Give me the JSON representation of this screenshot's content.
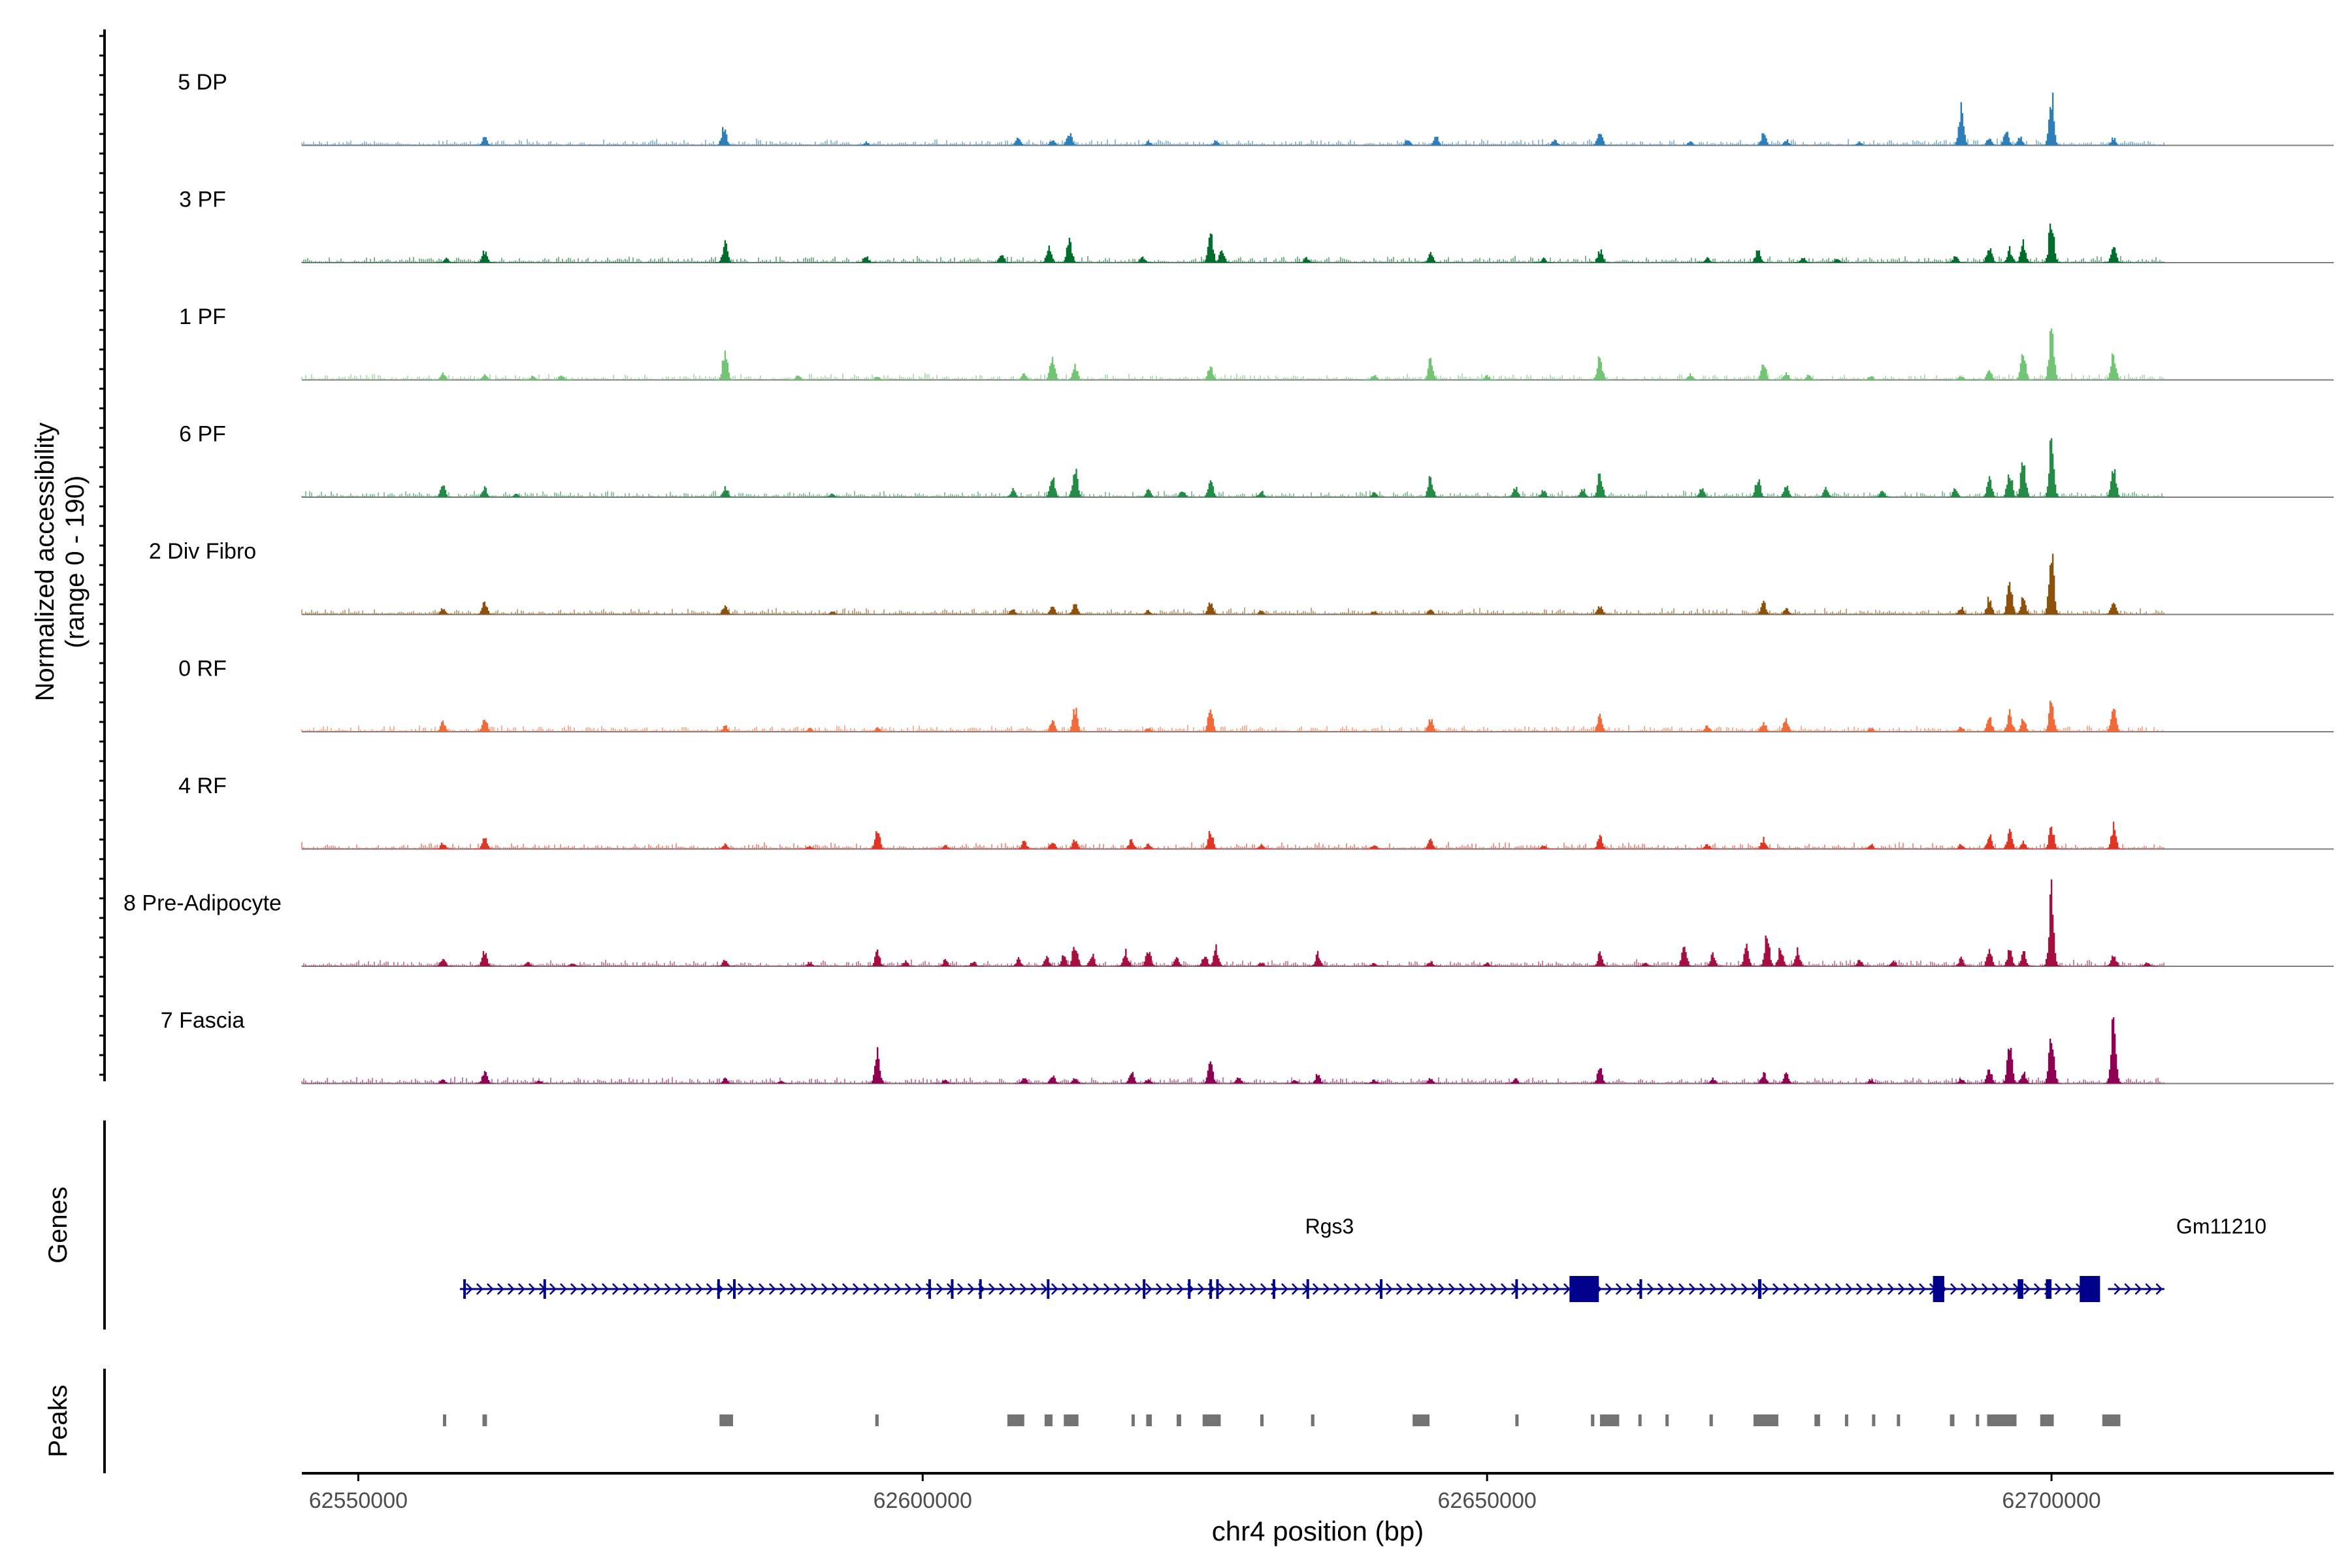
{
  "chart_data": {
    "type": "coverage",
    "ylabel": "Normalized accessibility",
    "ylabel_range": "(range 0 - 190)",
    "ylim": [
      0,
      190
    ],
    "xlabel": "chr4 position (bp)",
    "xlim": [
      62545000,
      62725000
    ],
    "data_start": 62545000,
    "data_end": 62710000,
    "x_ticks": [
      62550000,
      62600000,
      62650000,
      62700000
    ],
    "x_tick_labels": [
      "62550000",
      "62600000",
      "62650000",
      "62700000"
    ],
    "tracks": [
      {
        "name": "5 DP",
        "color": "#2c7fb8",
        "peaks": [
          [
            62561200,
            22
          ],
          [
            62582400,
            45
          ],
          [
            62595000,
            8
          ],
          [
            62608500,
            22
          ],
          [
            62611500,
            15
          ],
          [
            62613000,
            30
          ],
          [
            62620000,
            10
          ],
          [
            62626000,
            12
          ],
          [
            62643000,
            16
          ],
          [
            62645500,
            20
          ],
          [
            62656000,
            14
          ],
          [
            62660000,
            36
          ],
          [
            62668000,
            10
          ],
          [
            62674500,
            30
          ],
          [
            62676500,
            14
          ],
          [
            62683000,
            8
          ],
          [
            62692000,
            85
          ],
          [
            62694500,
            18
          ],
          [
            62696000,
            36
          ],
          [
            62697200,
            22
          ],
          [
            62700000,
            120
          ],
          [
            62705500,
            18
          ]
        ]
      },
      {
        "name": "3 PF",
        "color": "#006d2c",
        "peaks": [
          [
            62557800,
            10
          ],
          [
            62561200,
            28
          ],
          [
            62582500,
            45
          ],
          [
            62595000,
            15
          ],
          [
            62607000,
            18
          ],
          [
            62611200,
            42
          ],
          [
            62613000,
            55
          ],
          [
            62619500,
            14
          ],
          [
            62625500,
            70
          ],
          [
            62626500,
            32
          ],
          [
            62634000,
            12
          ],
          [
            62645000,
            22
          ],
          [
            62655000,
            10
          ],
          [
            62660000,
            30
          ],
          [
            62669500,
            12
          ],
          [
            62674000,
            34
          ],
          [
            62678000,
            14
          ],
          [
            62681000,
            10
          ],
          [
            62691500,
            15
          ],
          [
            62694500,
            42
          ],
          [
            62696300,
            32
          ],
          [
            62697500,
            50
          ],
          [
            62700000,
            110
          ],
          [
            62705500,
            40
          ]
        ]
      },
      {
        "name": "1 PF",
        "color": "#74c476",
        "peaks": [
          [
            62557500,
            18
          ],
          [
            62561200,
            14
          ],
          [
            62565500,
            10
          ],
          [
            62568000,
            12
          ],
          [
            62582500,
            70
          ],
          [
            62589000,
            10
          ],
          [
            62596000,
            10
          ],
          [
            62609000,
            15
          ],
          [
            62611500,
            55
          ],
          [
            62613500,
            35
          ],
          [
            62625500,
            35
          ],
          [
            62640000,
            12
          ],
          [
            62645000,
            50
          ],
          [
            62650000,
            10
          ],
          [
            62660000,
            58
          ],
          [
            62668000,
            14
          ],
          [
            62674500,
            40
          ],
          [
            62676500,
            18
          ],
          [
            62678500,
            12
          ],
          [
            62684000,
            10
          ],
          [
            62692000,
            10
          ],
          [
            62694500,
            25
          ],
          [
            62697500,
            60
          ],
          [
            62700000,
            120
          ],
          [
            62705500,
            60
          ]
        ]
      },
      {
        "name": "6 PF",
        "color": "#238b45",
        "peaks": [
          [
            62557500,
            28
          ],
          [
            62561200,
            22
          ],
          [
            62564000,
            8
          ],
          [
            62582500,
            25
          ],
          [
            62592000,
            10
          ],
          [
            62608000,
            20
          ],
          [
            62611500,
            50
          ],
          [
            62613500,
            70
          ],
          [
            62620000,
            20
          ],
          [
            62623000,
            18
          ],
          [
            62625500,
            45
          ],
          [
            62630000,
            15
          ],
          [
            62640000,
            12
          ],
          [
            62645000,
            48
          ],
          [
            62652500,
            25
          ],
          [
            62655000,
            18
          ],
          [
            62658500,
            20
          ],
          [
            62660000,
            60
          ],
          [
            62669000,
            22
          ],
          [
            62674000,
            45
          ],
          [
            62676500,
            30
          ],
          [
            62680000,
            22
          ],
          [
            62685000,
            14
          ],
          [
            62691500,
            22
          ],
          [
            62694500,
            45
          ],
          [
            62696300,
            65
          ],
          [
            62697500,
            90
          ],
          [
            62700000,
            130
          ],
          [
            62705500,
            75
          ]
        ]
      },
      {
        "name": "2 Div Fibro",
        "color": "#8c510a",
        "peaks": [
          [
            62557500,
            15
          ],
          [
            62561200,
            30
          ],
          [
            62582500,
            18
          ],
          [
            62592000,
            8
          ],
          [
            62608000,
            15
          ],
          [
            62611500,
            22
          ],
          [
            62613500,
            26
          ],
          [
            62620000,
            10
          ],
          [
            62625500,
            30
          ],
          [
            62630000,
            10
          ],
          [
            62640000,
            8
          ],
          [
            62645000,
            14
          ],
          [
            62660000,
            22
          ],
          [
            62674500,
            30
          ],
          [
            62676500,
            15
          ],
          [
            62692000,
            18
          ],
          [
            62694500,
            40
          ],
          [
            62696300,
            75
          ],
          [
            62697500,
            40
          ],
          [
            62700000,
            145
          ],
          [
            62705500,
            32
          ]
        ]
      },
      {
        "name": "0 RF",
        "color": "#f16a3a",
        "peaks": [
          [
            62557500,
            22
          ],
          [
            62561200,
            32
          ],
          [
            62582500,
            15
          ],
          [
            62590000,
            8
          ],
          [
            62596000,
            10
          ],
          [
            62611500,
            25
          ],
          [
            62613500,
            55
          ],
          [
            62620000,
            10
          ],
          [
            62625500,
            55
          ],
          [
            62645000,
            32
          ],
          [
            62660000,
            42
          ],
          [
            62669500,
            16
          ],
          [
            62674500,
            25
          ],
          [
            62676500,
            32
          ],
          [
            62684000,
            10
          ],
          [
            62692000,
            12
          ],
          [
            62694500,
            38
          ],
          [
            62696300,
            45
          ],
          [
            62697500,
            30
          ],
          [
            62700000,
            75
          ],
          [
            62705500,
            60
          ]
        ]
      },
      {
        "name": "4 RF",
        "color": "#e03524",
        "peaks": [
          [
            62557500,
            15
          ],
          [
            62561200,
            26
          ],
          [
            62582500,
            12
          ],
          [
            62590000,
            8
          ],
          [
            62596000,
            45
          ],
          [
            62602000,
            10
          ],
          [
            62609000,
            18
          ],
          [
            62611500,
            20
          ],
          [
            62613500,
            22
          ],
          [
            62618500,
            25
          ],
          [
            62620000,
            12
          ],
          [
            62625500,
            45
          ],
          [
            62630000,
            10
          ],
          [
            62640000,
            10
          ],
          [
            62645000,
            22
          ],
          [
            62655000,
            10
          ],
          [
            62660000,
            30
          ],
          [
            62669500,
            12
          ],
          [
            62674500,
            24
          ],
          [
            62684000,
            12
          ],
          [
            62692000,
            12
          ],
          [
            62694500,
            35
          ],
          [
            62696300,
            40
          ],
          [
            62697500,
            18
          ],
          [
            62700000,
            55
          ],
          [
            62705500,
            55
          ]
        ]
      },
      {
        "name": "8 Pre-Adipocyte",
        "color": "#a50f3e",
        "peaks": [
          [
            62557500,
            20
          ],
          [
            62561200,
            35
          ],
          [
            62565000,
            10
          ],
          [
            62569000,
            8
          ],
          [
            62582500,
            15
          ],
          [
            62590000,
            10
          ],
          [
            62596000,
            35
          ],
          [
            62598500,
            12
          ],
          [
            62602000,
            15
          ],
          [
            62604500,
            12
          ],
          [
            62608500,
            18
          ],
          [
            62611000,
            22
          ],
          [
            62612500,
            25
          ],
          [
            62613500,
            55
          ],
          [
            62615000,
            30
          ],
          [
            62618000,
            35
          ],
          [
            62620000,
            40
          ],
          [
            62622500,
            18
          ],
          [
            62625000,
            30
          ],
          [
            62626000,
            45
          ],
          [
            62630000,
            10
          ],
          [
            62635000,
            30
          ],
          [
            62640000,
            8
          ],
          [
            62645000,
            12
          ],
          [
            62650000,
            8
          ],
          [
            62660000,
            30
          ],
          [
            62664000,
            8
          ],
          [
            62667500,
            50
          ],
          [
            62670000,
            28
          ],
          [
            62673000,
            45
          ],
          [
            62674800,
            70
          ],
          [
            62676000,
            42
          ],
          [
            62677500,
            38
          ],
          [
            62683000,
            15
          ],
          [
            62686000,
            15
          ],
          [
            62692000,
            20
          ],
          [
            62694500,
            38
          ],
          [
            62696300,
            42
          ],
          [
            62697500,
            35
          ],
          [
            62700000,
            170
          ],
          [
            62705500,
            32
          ],
          [
            62708500,
            10
          ]
        ]
      },
      {
        "name": "7 Fascia",
        "color": "#8e0152",
        "peaks": [
          [
            62557500,
            10
          ],
          [
            62561200,
            28
          ],
          [
            62566000,
            8
          ],
          [
            62582500,
            12
          ],
          [
            62587500,
            8
          ],
          [
            62596000,
            75
          ],
          [
            62602000,
            10
          ],
          [
            62609000,
            14
          ],
          [
            62611500,
            22
          ],
          [
            62613500,
            15
          ],
          [
            62618500,
            32
          ],
          [
            62620000,
            12
          ],
          [
            62625500,
            55
          ],
          [
            62628000,
            15
          ],
          [
            62633000,
            10
          ],
          [
            62635000,
            22
          ],
          [
            62640000,
            10
          ],
          [
            62645000,
            14
          ],
          [
            62652500,
            12
          ],
          [
            62660000,
            38
          ],
          [
            62670000,
            12
          ],
          [
            62674500,
            26
          ],
          [
            62676500,
            22
          ],
          [
            62684000,
            10
          ],
          [
            62692000,
            12
          ],
          [
            62694500,
            35
          ],
          [
            62696300,
            100
          ],
          [
            62697500,
            28
          ],
          [
            62700000,
            120
          ],
          [
            62705500,
            150
          ]
        ]
      }
    ],
    "genes": {
      "title": "Genes",
      "color": "#00008b",
      "items": [
        {
          "name": "Rgs3",
          "start": 62559000,
          "end": 62704000
        },
        {
          "name": "Gm11210",
          "start": 62705000,
          "end": 62710000
        }
      ],
      "exons": [
        [
          62559300,
          62559400
        ],
        [
          62566400,
          62566600
        ],
        [
          62581800,
          62582000
        ],
        [
          62583200,
          62583300
        ],
        [
          62600500,
          62600600
        ],
        [
          62602500,
          62602600
        ],
        [
          62605000,
          62605100
        ],
        [
          62611000,
          62611100
        ],
        [
          62619500,
          62619700
        ],
        [
          62623500,
          62623700
        ],
        [
          62625400,
          62625600
        ],
        [
          62626000,
          62626200
        ],
        [
          62631000,
          62631100
        ],
        [
          62634000,
          62634100
        ],
        [
          62640500,
          62640600
        ],
        [
          62652500,
          62652700
        ],
        [
          62657300,
          62659900
        ],
        [
          62663500,
          62663700
        ],
        [
          62674000,
          62674300
        ],
        [
          62689500,
          62690500
        ],
        [
          62697000,
          62697500
        ],
        [
          62699500,
          62700000
        ],
        [
          62702500,
          62704300
        ]
      ]
    },
    "peak_regions": {
      "title": "Peaks",
      "color": "#737373",
      "regions": [
        [
          62557500,
          62557700
        ],
        [
          62561000,
          62561400
        ],
        [
          62582000,
          62583200
        ],
        [
          62595800,
          62596100
        ],
        [
          62607500,
          62609000
        ],
        [
          62610800,
          62611500
        ],
        [
          62612500,
          62613800
        ],
        [
          62618500,
          62618700
        ],
        [
          62619800,
          62620300
        ],
        [
          62622500,
          62622900
        ],
        [
          62624800,
          62626400
        ],
        [
          62629900,
          62630200
        ],
        [
          62634400,
          62634700
        ],
        [
          62643400,
          62644900
        ],
        [
          62652500,
          62652700
        ],
        [
          62659200,
          62659500
        ],
        [
          62660000,
          62661700
        ],
        [
          62663400,
          62663600
        ],
        [
          62665800,
          62666000
        ],
        [
          62669700,
          62670000
        ],
        [
          62673600,
          62675800
        ],
        [
          62679000,
          62679500
        ],
        [
          62681700,
          62681800
        ],
        [
          62684100,
          62684300
        ],
        [
          62686300,
          62686500
        ],
        [
          62691000,
          62691400
        ],
        [
          62693300,
          62693500
        ],
        [
          62694300,
          62696900
        ],
        [
          62699000,
          62700200
        ],
        [
          62704500,
          62706100
        ]
      ]
    }
  }
}
